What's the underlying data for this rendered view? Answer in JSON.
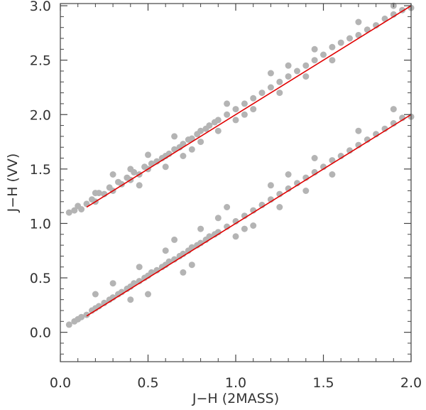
{
  "chart_data": {
    "type": "scatter",
    "xlabel": "J−H  (2MASS)",
    "ylabel": "J−H  (VV)",
    "xlim": [
      0.0,
      2.0
    ],
    "ylim": [
      -0.27,
      3.02
    ],
    "xticks": [
      "0.0",
      "0.5",
      "1.0",
      "1.5",
      "2.0"
    ],
    "yticks": [
      "0.0",
      "0.5",
      "1.0",
      "1.5",
      "2.0",
      "2.5",
      "3.0"
    ],
    "grid": false,
    "colors": {
      "points": "#b4b4b4",
      "fit": "#e00000",
      "axes": "#444444"
    },
    "series": [
      {
        "points": [
          [
            0.05,
            1.1
          ],
          [
            0.08,
            1.12
          ],
          [
            0.1,
            1.16
          ],
          [
            0.12,
            1.13
          ],
          [
            0.15,
            1.18
          ],
          [
            0.18,
            1.22
          ],
          [
            0.2,
            1.2
          ],
          [
            0.22,
            1.28
          ],
          [
            0.25,
            1.27
          ],
          [
            0.28,
            1.33
          ],
          [
            0.3,
            1.3
          ],
          [
            0.33,
            1.38
          ],
          [
            0.35,
            1.36
          ],
          [
            0.38,
            1.42
          ],
          [
            0.4,
            1.4
          ],
          [
            0.42,
            1.47
          ],
          [
            0.45,
            1.45
          ],
          [
            0.48,
            1.52
          ],
          [
            0.5,
            1.5
          ],
          [
            0.52,
            1.55
          ],
          [
            0.55,
            1.57
          ],
          [
            0.58,
            1.6
          ],
          [
            0.6,
            1.62
          ],
          [
            0.62,
            1.64
          ],
          [
            0.65,
            1.68
          ],
          [
            0.68,
            1.7
          ],
          [
            0.7,
            1.73
          ],
          [
            0.73,
            1.77
          ],
          [
            0.75,
            1.78
          ],
          [
            0.78,
            1.82
          ],
          [
            0.8,
            1.85
          ],
          [
            0.83,
            1.87
          ],
          [
            0.85,
            1.9
          ],
          [
            0.88,
            1.93
          ],
          [
            0.9,
            1.95
          ],
          [
            0.95,
            2.0
          ],
          [
            1.0,
            2.05
          ],
          [
            1.05,
            2.1
          ],
          [
            1.1,
            2.15
          ],
          [
            1.15,
            2.2
          ],
          [
            1.2,
            2.25
          ],
          [
            1.25,
            2.3
          ],
          [
            1.3,
            2.35
          ],
          [
            1.35,
            2.4
          ],
          [
            1.4,
            2.45
          ],
          [
            1.45,
            2.5
          ],
          [
            1.5,
            2.55
          ],
          [
            1.55,
            2.62
          ],
          [
            1.6,
            2.66
          ],
          [
            1.65,
            2.7
          ],
          [
            1.7,
            2.73
          ],
          [
            1.75,
            2.78
          ],
          [
            1.8,
            2.82
          ],
          [
            1.85,
            2.88
          ],
          [
            1.9,
            2.92
          ],
          [
            1.95,
            2.96
          ],
          [
            2.0,
            2.98
          ],
          [
            0.3,
            1.45
          ],
          [
            0.5,
            1.63
          ],
          [
            0.6,
            1.52
          ],
          [
            0.7,
            1.62
          ],
          [
            0.9,
            1.85
          ],
          [
            1.1,
            2.05
          ],
          [
            1.3,
            2.45
          ],
          [
            1.4,
            2.35
          ],
          [
            1.2,
            2.38
          ],
          [
            1.0,
            1.95
          ],
          [
            0.8,
            1.75
          ],
          [
            0.4,
            1.5
          ],
          [
            0.2,
            1.28
          ],
          [
            1.55,
            2.5
          ],
          [
            1.7,
            2.85
          ],
          [
            1.45,
            2.6
          ],
          [
            1.9,
            3.0
          ],
          [
            0.65,
            1.8
          ],
          [
            1.25,
            2.2
          ],
          [
            0.45,
            1.35
          ],
          [
            0.75,
            1.68
          ],
          [
            0.95,
            2.1
          ],
          [
            1.05,
            2.0
          ]
        ]
      },
      {
        "points": [
          [
            0.05,
            0.07
          ],
          [
            0.08,
            0.1
          ],
          [
            0.1,
            0.12
          ],
          [
            0.12,
            0.14
          ],
          [
            0.15,
            0.16
          ],
          [
            0.18,
            0.2
          ],
          [
            0.2,
            0.22
          ],
          [
            0.22,
            0.24
          ],
          [
            0.25,
            0.27
          ],
          [
            0.28,
            0.3
          ],
          [
            0.3,
            0.32
          ],
          [
            0.33,
            0.35
          ],
          [
            0.35,
            0.37
          ],
          [
            0.38,
            0.4
          ],
          [
            0.4,
            0.42
          ],
          [
            0.42,
            0.45
          ],
          [
            0.45,
            0.47
          ],
          [
            0.48,
            0.5
          ],
          [
            0.5,
            0.52
          ],
          [
            0.52,
            0.55
          ],
          [
            0.55,
            0.57
          ],
          [
            0.58,
            0.6
          ],
          [
            0.6,
            0.62
          ],
          [
            0.62,
            0.65
          ],
          [
            0.65,
            0.67
          ],
          [
            0.68,
            0.7
          ],
          [
            0.7,
            0.72
          ],
          [
            0.73,
            0.75
          ],
          [
            0.75,
            0.78
          ],
          [
            0.78,
            0.8
          ],
          [
            0.8,
            0.82
          ],
          [
            0.83,
            0.85
          ],
          [
            0.85,
            0.88
          ],
          [
            0.88,
            0.9
          ],
          [
            0.9,
            0.92
          ],
          [
            0.95,
            0.97
          ],
          [
            1.0,
            1.02
          ],
          [
            1.05,
            1.07
          ],
          [
            1.1,
            1.12
          ],
          [
            1.15,
            1.17
          ],
          [
            1.2,
            1.22
          ],
          [
            1.25,
            1.27
          ],
          [
            1.3,
            1.32
          ],
          [
            1.35,
            1.37
          ],
          [
            1.4,
            1.42
          ],
          [
            1.45,
            1.47
          ],
          [
            1.5,
            1.52
          ],
          [
            1.55,
            1.58
          ],
          [
            1.6,
            1.62
          ],
          [
            1.65,
            1.67
          ],
          [
            1.7,
            1.72
          ],
          [
            1.75,
            1.77
          ],
          [
            1.8,
            1.82
          ],
          [
            1.85,
            1.87
          ],
          [
            1.9,
            1.92
          ],
          [
            1.95,
            1.97
          ],
          [
            2.0,
            1.98
          ],
          [
            0.3,
            0.45
          ],
          [
            0.5,
            0.35
          ],
          [
            0.6,
            0.75
          ],
          [
            0.7,
            0.55
          ],
          [
            0.9,
            1.05
          ],
          [
            1.1,
            0.98
          ],
          [
            1.3,
            1.45
          ],
          [
            1.4,
            1.3
          ],
          [
            1.2,
            1.35
          ],
          [
            1.0,
            0.88
          ],
          [
            0.8,
            0.95
          ],
          [
            0.4,
            0.3
          ],
          [
            0.2,
            0.35
          ],
          [
            1.55,
            1.45
          ],
          [
            1.7,
            1.85
          ],
          [
            1.45,
            1.6
          ],
          [
            1.9,
            2.05
          ],
          [
            0.65,
            0.85
          ],
          [
            1.25,
            1.15
          ],
          [
            0.45,
            0.6
          ],
          [
            0.75,
            0.62
          ],
          [
            0.95,
            1.15
          ],
          [
            1.05,
            0.95
          ]
        ]
      }
    ],
    "fit_lines": [
      {
        "x": [
          0.15,
          2.0
        ],
        "y": [
          1.15,
          3.0
        ]
      },
      {
        "x": [
          0.15,
          2.0
        ],
        "y": [
          0.15,
          2.0
        ]
      }
    ]
  }
}
